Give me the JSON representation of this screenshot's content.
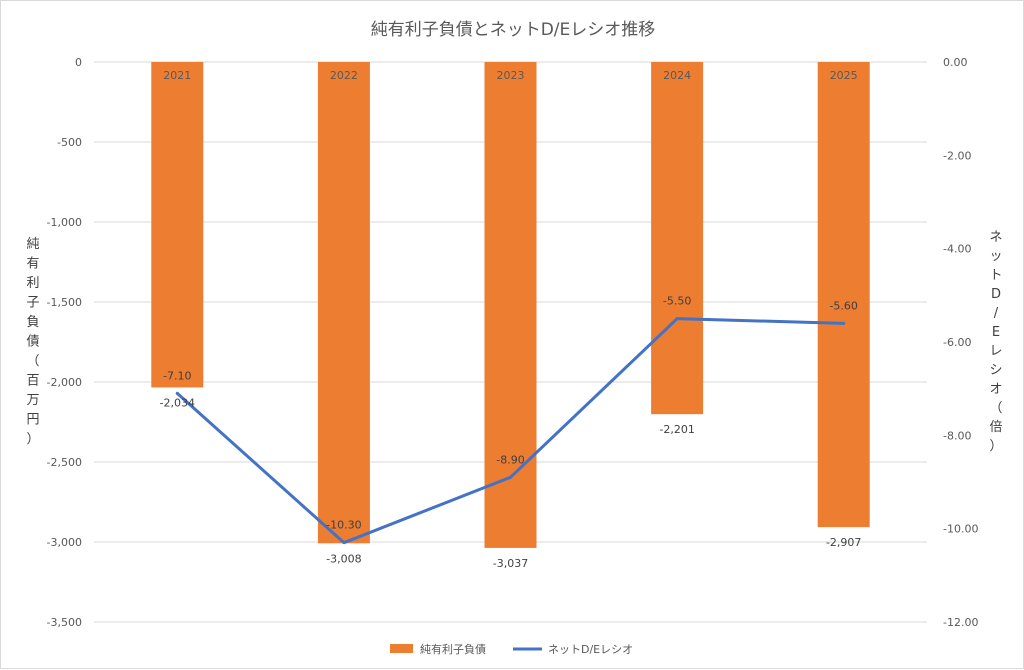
{
  "chart_data": {
    "type": "bar",
    "title": "純有利子負債とネットD/Eレシオ推移",
    "categories": [
      "2021",
      "2022",
      "2023",
      "2024",
      "2025"
    ],
    "series": [
      {
        "name": "純有利子負債",
        "type": "bar",
        "axis": "left",
        "color": "#ED7D31",
        "values": [
          -2034,
          -3008,
          -3037,
          -2201,
          -2907
        ],
        "value_labels": [
          "-2,034",
          "-3,008",
          "-3,037",
          "-2,201",
          "-2,907"
        ]
      },
      {
        "name": "ネットD/Eレシオ",
        "type": "line",
        "axis": "right",
        "color": "#4472C4",
        "values": [
          -7.1,
          -10.3,
          -8.9,
          -5.5,
          -5.6
        ],
        "value_labels": [
          "-7.10",
          "-10.30",
          "-8.90",
          "-5.50",
          "-5.60"
        ]
      }
    ],
    "y_left": {
      "label": "純有利子負債（百万円）",
      "label_chars": [
        "純",
        "有",
        "利",
        "子",
        "負",
        "債",
        "（",
        "百",
        "万",
        "円",
        "）"
      ],
      "ylim": [
        -3500,
        0
      ],
      "tick_values": [
        0,
        -500,
        -1000,
        -1500,
        -2000,
        -2500,
        -3000,
        -3500
      ],
      "tick_labels": [
        "0",
        "-500",
        "-1,000",
        "-1,500",
        "-2,000",
        "-2,500",
        "-3,000",
        "-3,500"
      ]
    },
    "y_right": {
      "label": "ネットD/Eレシオ（倍）",
      "label_chars": [
        "ネ",
        "ッ",
        "ト",
        "D",
        "/",
        "E",
        "レ",
        "シ",
        "オ",
        "（",
        "倍",
        "）"
      ],
      "ylim": [
        -12,
        0
      ],
      "tick_values": [
        0,
        -2,
        -4,
        -6,
        -8,
        -10,
        -12
      ],
      "tick_labels": [
        "0.00",
        "-2.00",
        "-4.00",
        "-6.00",
        "-8.00",
        "-10.00",
        "-12.00"
      ]
    },
    "grid": true,
    "legend_position": "bottom"
  }
}
